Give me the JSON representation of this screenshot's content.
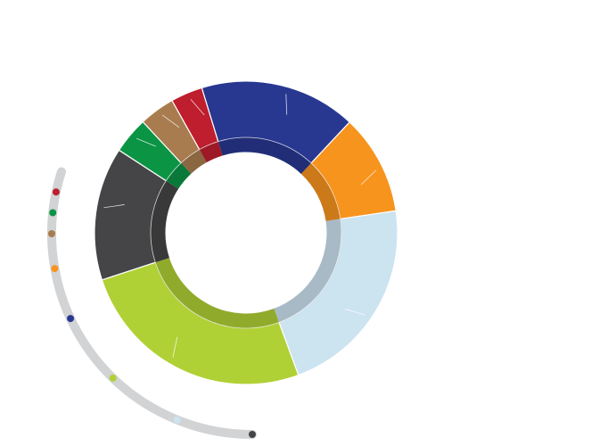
{
  "chart_data": {
    "type": "pie",
    "style": "donut",
    "title": "",
    "labels_visible": false,
    "legend": "none",
    "series": [
      {
        "value": 16.7,
        "color": "#283891"
      },
      {
        "value": 10.7,
        "color": "#F7941E"
      },
      {
        "value": 21.7,
        "color": "#CCE3F0"
      },
      {
        "value": 25.6,
        "color": "#B0D136"
      },
      {
        "value": 14.2,
        "color": "#454547"
      },
      {
        "value": 3.9,
        "color": "#0A9444"
      },
      {
        "value": 3.8,
        "color": "#A87C4F"
      },
      {
        "value": 3.4,
        "color": "#BE1E2D"
      }
    ],
    "guide_markers": [
      {
        "color": "#BE1E2D"
      },
      {
        "color": "#0A9444"
      },
      {
        "color": "#A87C4F"
      },
      {
        "color": "#F7941E"
      },
      {
        "color": "#283891"
      },
      {
        "color": "#B0D136"
      },
      {
        "color": "#CCE3F0"
      },
      {
        "color": "#454547"
      }
    ]
  }
}
